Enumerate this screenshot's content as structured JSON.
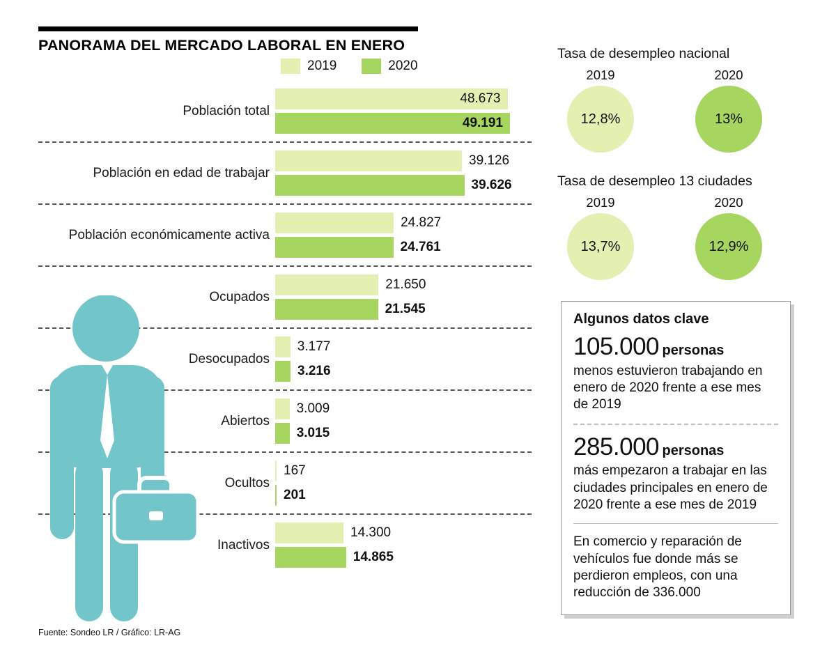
{
  "title": "PANORAMA DEL MERCADO LABORAL EN ENERO",
  "colors": {
    "bar_2019": "#e4f0b2",
    "bar_2020": "#a6d65f",
    "figure_teal": "#72c6ca"
  },
  "chart_data": [
    {
      "type": "bar",
      "orientation": "horizontal",
      "title": "PANORAMA DEL MERCADO LABORAL EN ENERO",
      "categories": [
        "Población total",
        "Población en edad de trabajar",
        "Población económicamente activa",
        "Ocupados",
        "Desocupados",
        "Abiertos",
        "Ocultos",
        "Inactivos"
      ],
      "series": [
        {
          "name": "2019",
          "values": [
            48673,
            39126,
            24827,
            21650,
            3177,
            3009,
            167,
            14300
          ],
          "labels": [
            "48.673",
            "39.126",
            "24.827",
            "21.650",
            "3.177",
            "3.009",
            "167",
            "14.300"
          ]
        },
        {
          "name": "2020",
          "values": [
            49191,
            39626,
            24761,
            21545,
            3216,
            3015,
            201,
            14865
          ],
          "labels": [
            "49.191",
            "39.626",
            "24.761",
            "21.545",
            "3.216",
            "3.015",
            "201",
            "14.865"
          ]
        }
      ],
      "xlim": [
        0,
        49191
      ],
      "legend_position": "top",
      "grid": false
    },
    {
      "type": "kpi",
      "title": "Tasa de desempleo nacional",
      "items": [
        {
          "label": "2019",
          "value": "12,8%"
        },
        {
          "label": "2020",
          "value": "13%"
        }
      ]
    },
    {
      "type": "kpi",
      "title": "Tasa de desempleo 13 ciudades",
      "items": [
        {
          "label": "2019",
          "value": "13,7%"
        },
        {
          "label": "2020",
          "value": "12,9%"
        }
      ]
    }
  ],
  "facts": {
    "title": "Algunos datos clave",
    "items": [
      {
        "big": "105.000",
        "unit": "personas",
        "text": "menos estuvieron trabajando en enero de 2020 frente a ese mes de 2019"
      },
      {
        "big": "285.000",
        "unit": "personas",
        "text": "más empezaron a trabajar en las ciudades principales en enero de 2020 frente a ese mes de 2019"
      },
      {
        "big": "",
        "unit": "",
        "text": "En comercio y reparación de vehículos fue donde más se perdieron empleos, con una reducción de 336.000"
      }
    ]
  },
  "footer": {
    "source": "Fuente: Sondeo LR / Gráfico: LR-AG"
  }
}
